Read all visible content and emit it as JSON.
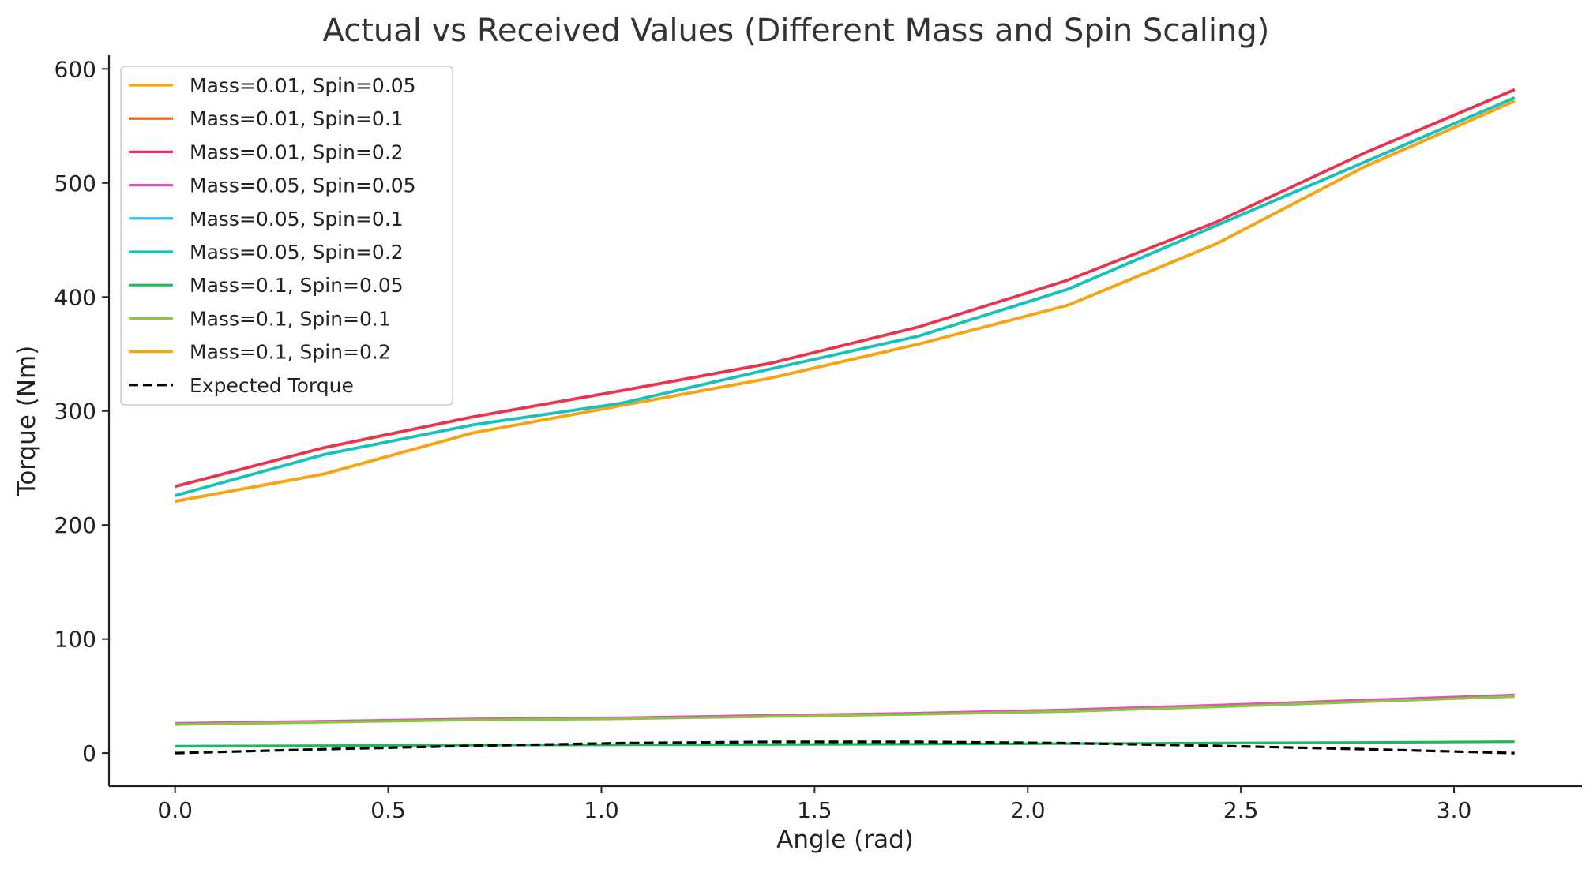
{
  "chart_data": {
    "type": "line",
    "title": "Actual vs Received Values (Different Mass and Spin Scaling)",
    "xlabel": "Angle (rad)",
    "ylabel": "Torque (Nm)",
    "xlim": [
      -0.155,
      3.3
    ],
    "ylim": [
      -29,
      612
    ],
    "xticks": [
      0.0,
      0.5,
      1.0,
      1.5,
      2.0,
      2.5,
      3.0
    ],
    "xtick_labels": [
      "0.0",
      "0.5",
      "1.0",
      "1.5",
      "2.0",
      "2.5",
      "3.0"
    ],
    "yticks": [
      0,
      100,
      200,
      300,
      400,
      500,
      600
    ],
    "ytick_labels": [
      "0",
      "100",
      "200",
      "300",
      "400",
      "500",
      "600"
    ],
    "grid": false,
    "legend_position": "upper-left",
    "x": [
      0.0,
      0.349,
      0.698,
      1.047,
      1.396,
      1.745,
      2.094,
      2.443,
      2.793,
      3.142
    ],
    "series": [
      {
        "name": "Mass=0.01, Spin=0.05",
        "color": "#F8A312",
        "dash": false,
        "values": [
          221.0,
          245.0,
          281.0,
          305.0,
          329.0,
          359.0,
          393.0,
          447.0,
          515.0,
          572.0
        ]
      },
      {
        "name": "Mass=0.01, Spin=0.1",
        "color": "#F05A1A",
        "dash": false,
        "values": [
          233.5,
          267.5,
          294.5,
          317.5,
          341.5,
          373.5,
          414.5,
          465.5,
          526.5,
          581.5
        ]
      },
      {
        "name": "Mass=0.01, Spin=0.2",
        "color": "#E8315A",
        "dash": false,
        "values": [
          234.0,
          268.0,
          295.0,
          318.0,
          342.0,
          374.0,
          415.0,
          466.0,
          527.0,
          582.0
        ]
      },
      {
        "name": "Mass=0.05, Spin=0.05",
        "color": "#E052B8",
        "dash": false,
        "values": [
          26.0,
          28.0,
          30.0,
          31.0,
          33.0,
          35.0,
          38.0,
          42.0,
          46.5,
          51.0
        ]
      },
      {
        "name": "Mass=0.05, Spin=0.1",
        "color": "#2DB8EC",
        "dash": false,
        "values": [
          225.5,
          261.5,
          287.5,
          306.5,
          336.5,
          365.5,
          406.5,
          462.5,
          518.5,
          574.5
        ]
      },
      {
        "name": "Mass=0.05, Spin=0.2",
        "color": "#15C3B5",
        "dash": false,
        "values": [
          226.0,
          262.0,
          288.0,
          307.0,
          337.0,
          366.0,
          407.0,
          463.0,
          519.0,
          575.0
        ]
      },
      {
        "name": "Mass=0.1, Spin=0.05",
        "color": "#1FB85A",
        "dash": false,
        "values": [
          6.0,
          6.5,
          7.0,
          7.2,
          7.5,
          7.8,
          8.3,
          8.8,
          9.3,
          10.0
        ]
      },
      {
        "name": "Mass=0.1, Spin=0.1",
        "color": "#8CC63F",
        "dash": false,
        "values": [
          25.0,
          27.0,
          29.0,
          30.0,
          32.0,
          34.0,
          36.5,
          40.5,
          45.0,
          49.5
        ]
      },
      {
        "name": "Mass=0.1, Spin=0.2",
        "color": "#F8A312",
        "dash": false,
        "values": [
          220.5,
          244.5,
          280.5,
          304.5,
          328.5,
          358.5,
          392.5,
          446.5,
          514.5,
          571.5
        ]
      },
      {
        "name": "Expected Torque",
        "color": "#000000",
        "dash": true,
        "values": [
          0.0,
          3.4,
          6.4,
          8.7,
          9.8,
          9.8,
          8.7,
          6.4,
          3.4,
          0.0
        ]
      }
    ]
  }
}
